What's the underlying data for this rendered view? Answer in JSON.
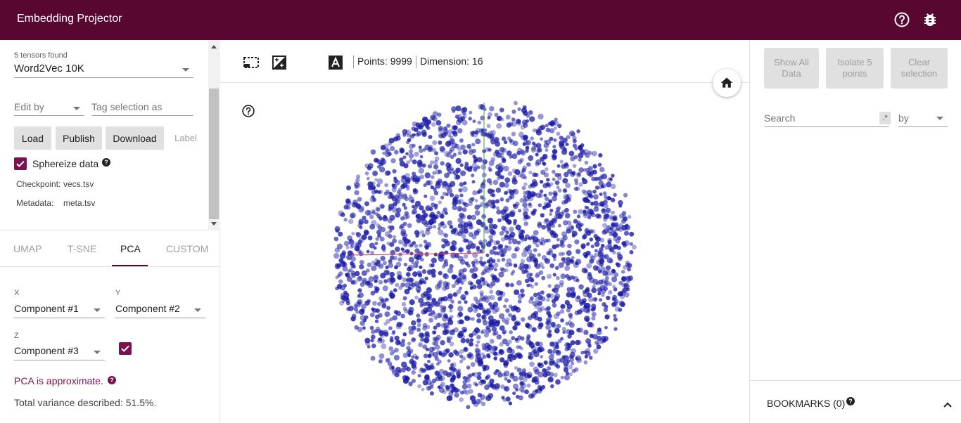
{
  "header": {
    "title": "Embedding Projector",
    "icons": [
      "help-icon",
      "bug-icon"
    ]
  },
  "data_panel": {
    "tensors_found": "5 tensors found",
    "tensor_selected": "Word2Vec 10K",
    "edit_by_placeholder": "Edit by",
    "tag_selection_placeholder": "Tag selection as",
    "buttons": {
      "load": "Load",
      "publish": "Publish",
      "download": "Download",
      "label": "Label"
    },
    "sphereize_label": "Sphereize data",
    "sphereize_checked": true,
    "checkpoint_key": "Checkpoint:",
    "checkpoint_value": "vecs.tsv",
    "metadata_key": "Metadata:",
    "metadata_value": "meta.tsv"
  },
  "projection_tabs": {
    "tabs": [
      "UMAP",
      "T-SNE",
      "PCA",
      "CUSTOM"
    ],
    "active": "PCA"
  },
  "pca": {
    "x_label": "X",
    "x_value": "Component #1",
    "y_label": "Y",
    "y_value": "Component #2",
    "z_label": "Z",
    "z_value": "Component #3",
    "z_enabled": true,
    "warning": "PCA is approximate.",
    "variance": "Total variance described: 51.5%."
  },
  "toolbar": {
    "icons": [
      "select-box-icon",
      "night-mode-icon",
      "moon-icon",
      "label-icon"
    ],
    "points": "Points: 9999",
    "dimension": "Dimension: 16"
  },
  "scatter": {
    "point_color": "#1a1aa6",
    "axis_colors": {
      "x": "#e53935",
      "y": "#43a047"
    }
  },
  "inspector": {
    "show_all": "Show All Data",
    "isolate": "Isolate 5 points",
    "clear": "Clear selection",
    "search_placeholder": "Search",
    "regex": ".*",
    "by": "by",
    "bookmarks": "BOOKMARKS (0)"
  },
  "colors": {
    "brand": "#580731",
    "accent": "#7b1250"
  }
}
